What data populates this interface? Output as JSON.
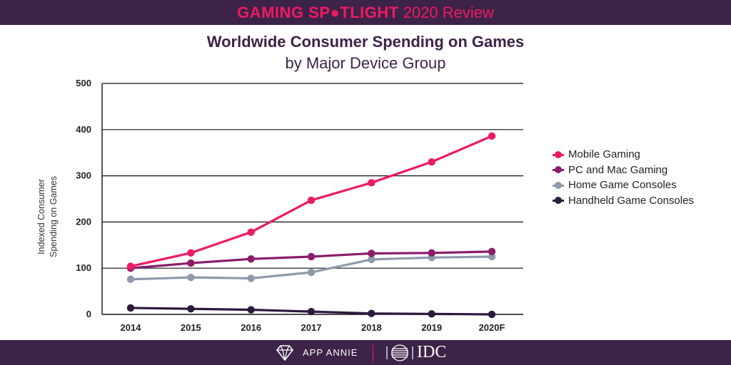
{
  "banner": {
    "title_bold": "GAMING SP●TLIGHT",
    "title_rest": "2020 Review"
  },
  "footer": {
    "brand1": "APP ANNIE",
    "brand2": "IDC"
  },
  "colors": {
    "banner": "#3d2347",
    "accent": "#ee1a64"
  },
  "chart_data": {
    "type": "line",
    "title": "Worldwide Consumer Spending on Games",
    "subtitle": "by Major Device Group",
    "xlabel": "",
    "ylabel": [
      "Indexed Consumer",
      "Spending on Games"
    ],
    "categories": [
      "2014",
      "2015",
      "2016",
      "2017",
      "2018",
      "2019",
      "2020F"
    ],
    "yticks": [
      0,
      100,
      200,
      300,
      400,
      500
    ],
    "ylim": [
      0,
      500
    ],
    "grid": true,
    "legend_position": "right",
    "series": [
      {
        "name": "Mobile Gaming",
        "color": "#ee1a64",
        "values": [
          104,
          133,
          178,
          247,
          285,
          330,
          386
        ]
      },
      {
        "name": "PC and Mac Gaming",
        "color": "#8a1c6a",
        "values": [
          100,
          111,
          120,
          125,
          132,
          133,
          136
        ]
      },
      {
        "name": "Home Game Consoles",
        "color": "#8e9aab",
        "values": [
          76,
          80,
          78,
          91,
          119,
          123,
          125
        ]
      },
      {
        "name": "Handheld Game Consoles",
        "color": "#2e1a3e",
        "values": [
          14,
          12,
          10,
          6,
          2,
          1,
          0
        ]
      }
    ]
  }
}
